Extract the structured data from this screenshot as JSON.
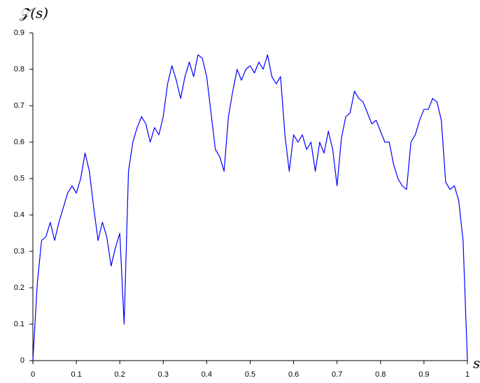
{
  "chart_data": {
    "type": "line",
    "xlabel": "s",
    "ylabel": "𝒵(s)",
    "x": [
      0,
      0.01,
      0.02,
      0.03,
      0.04,
      0.05,
      0.06,
      0.07,
      0.08,
      0.09,
      0.1,
      0.11,
      0.12,
      0.13,
      0.14,
      0.15,
      0.16,
      0.17,
      0.18,
      0.19,
      0.2,
      0.21,
      0.22,
      0.23,
      0.24,
      0.25,
      0.26,
      0.27,
      0.28,
      0.29,
      0.3,
      0.31,
      0.32,
      0.33,
      0.34,
      0.35,
      0.36,
      0.37,
      0.38,
      0.39,
      0.4,
      0.41,
      0.42,
      0.43,
      0.44,
      0.45,
      0.46,
      0.47,
      0.48,
      0.49,
      0.5,
      0.51,
      0.52,
      0.53,
      0.54,
      0.55,
      0.56,
      0.57,
      0.58,
      0.59,
      0.6,
      0.61,
      0.62,
      0.63,
      0.64,
      0.65,
      0.66,
      0.67,
      0.68,
      0.69,
      0.7,
      0.71,
      0.72,
      0.73,
      0.74,
      0.75,
      0.76,
      0.77,
      0.78,
      0.79,
      0.8,
      0.81,
      0.82,
      0.83,
      0.84,
      0.85,
      0.86,
      0.87,
      0.88,
      0.89,
      0.9,
      0.91,
      0.92,
      0.93,
      0.94,
      0.95,
      0.96,
      0.97,
      0.98,
      0.99,
      1
    ],
    "series": [
      {
        "name": "Z",
        "color": "#0000ff",
        "values": [
          0,
          0.21,
          0.33,
          0.34,
          0.38,
          0.33,
          0.38,
          0.42,
          0.46,
          0.48,
          0.46,
          0.5,
          0.57,
          0.52,
          0.42,
          0.33,
          0.38,
          0.34,
          0.26,
          0.31,
          0.35,
          0.1,
          0.52,
          0.6,
          0.64,
          0.67,
          0.65,
          0.6,
          0.64,
          0.62,
          0.67,
          0.76,
          0.81,
          0.77,
          0.72,
          0.78,
          0.82,
          0.78,
          0.84,
          0.83,
          0.78,
          0.68,
          0.58,
          0.56,
          0.52,
          0.67,
          0.74,
          0.8,
          0.77,
          0.8,
          0.81,
          0.79,
          0.82,
          0.8,
          0.84,
          0.78,
          0.76,
          0.78,
          0.62,
          0.52,
          0.62,
          0.6,
          0.62,
          0.58,
          0.6,
          0.52,
          0.6,
          0.57,
          0.63,
          0.58,
          0.48,
          0.61,
          0.67,
          0.68,
          0.74,
          0.72,
          0.71,
          0.68,
          0.65,
          0.66,
          0.63,
          0.6,
          0.6,
          0.54,
          0.5,
          0.48,
          0.47,
          0.6,
          0.62,
          0.66,
          0.69,
          0.69,
          0.72,
          0.71,
          0.66,
          0.49,
          0.47,
          0.48,
          0.44,
          0.33,
          0
        ]
      }
    ],
    "xlim": [
      0,
      1
    ],
    "xticks": [
      0,
      0.1,
      0.2,
      0.3,
      0.4,
      0.5,
      0.6,
      0.7,
      0.8,
      0.9,
      1
    ],
    "ylim": [
      0,
      0.9
    ],
    "yticks": [
      0,
      0.1,
      0.2,
      0.3,
      0.4,
      0.5,
      0.6,
      0.7,
      0.8,
      0.9
    ]
  }
}
